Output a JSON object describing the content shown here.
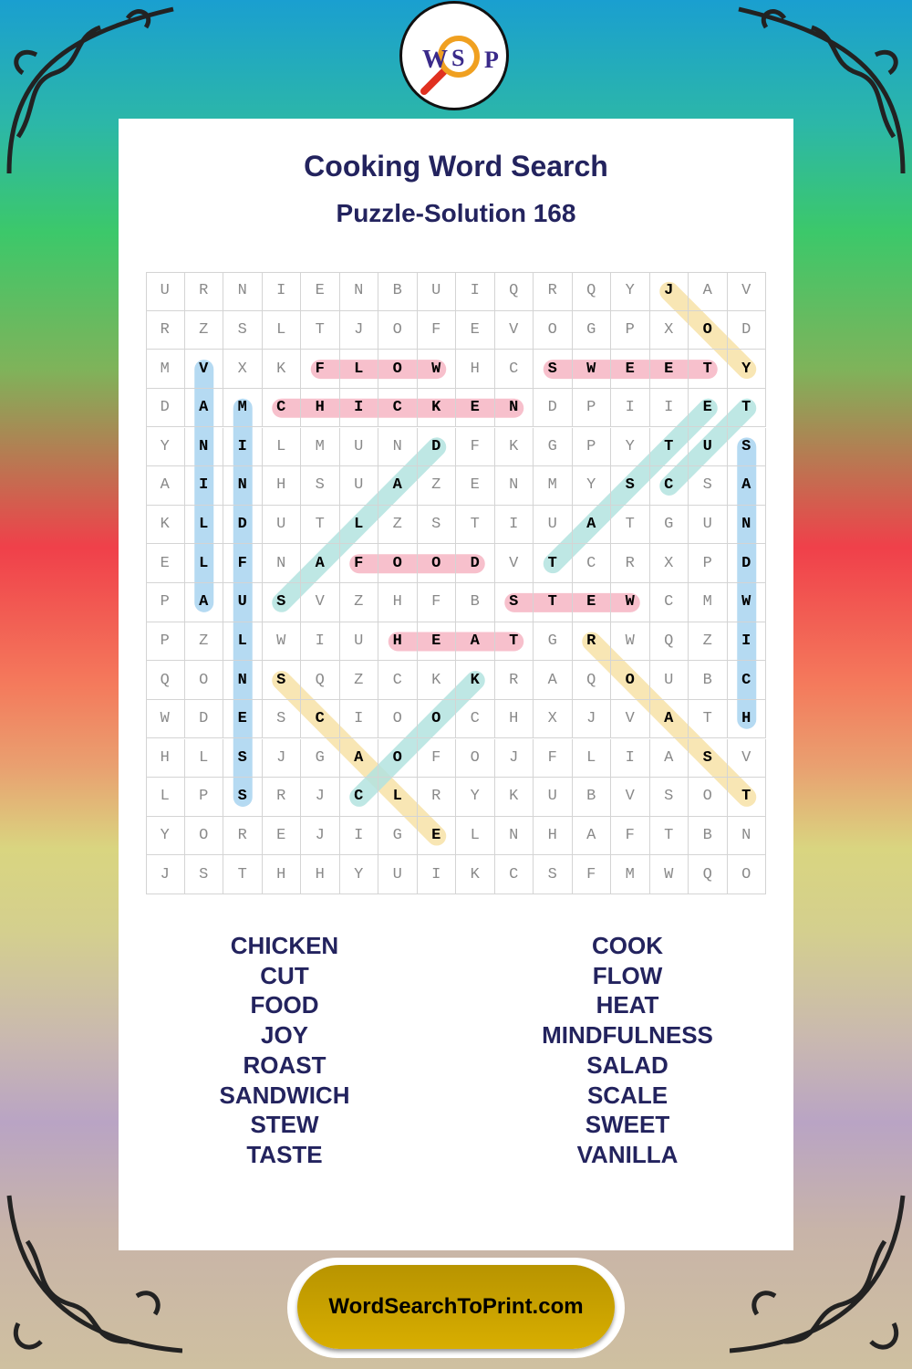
{
  "logo": {
    "letters": [
      "W",
      "S",
      "P"
    ]
  },
  "title": "Cooking Word Search",
  "subtitle": "Puzzle-Solution 168",
  "grid": [
    "URNIENBUIQRQYJAV",
    "RZSLTJOFEVOGPXOD",
    "MVXKFLOWHCSWEETY",
    "DAMCHICKENDPIIET",
    "YNILMUNDFKGPYTUS",
    "AINHSUAZENMYSCSA",
    "KLDUTLZSTIUATGUN",
    "ELFNAFOODVTCRXPD",
    "PAUSVZHFBSTEWCMW",
    "PZLWIUHEATGRWQZI",
    "QONSQZCKKRAQOUBC",
    "WDESCIOOCHXJVATH",
    "HLSJGAOFOJFLIASV",
    "LPSRJCLRYKUBVSOT",
    "YOREJIGELNHAFTBN",
    "JSTHHYUIKCSFMWQO"
  ],
  "colors": {
    "pink": "#f7c0cc",
    "blue": "#a9d4f0",
    "teal": "#b3e3e0",
    "yellow": "#f7e2a8",
    "text": "#23235e",
    "button": "#d0a500"
  },
  "solutions": [
    {
      "word": "JOY",
      "start": [
        0,
        13
      ],
      "end": [
        2,
        15
      ],
      "color": "yellow"
    },
    {
      "word": "FLOW",
      "start": [
        2,
        4
      ],
      "end": [
        2,
        7
      ],
      "color": "pink"
    },
    {
      "word": "SWEET",
      "start": [
        2,
        10
      ],
      "end": [
        2,
        14
      ],
      "color": "pink"
    },
    {
      "word": "CHICKEN",
      "start": [
        3,
        3
      ],
      "end": [
        3,
        9
      ],
      "color": "pink"
    },
    {
      "word": "VANILLA",
      "start": [
        2,
        1
      ],
      "end": [
        8,
        1
      ],
      "color": "blue"
    },
    {
      "word": "MINDFULNESS",
      "start": [
        3,
        2
      ],
      "end": [
        13,
        2
      ],
      "color": "blue"
    },
    {
      "word": "SALAD",
      "start": [
        8,
        3
      ],
      "end": [
        4,
        7
      ],
      "color": "teal"
    },
    {
      "word": "TASTE",
      "start": [
        7,
        10
      ],
      "end": [
        3,
        14
      ],
      "color": "teal"
    },
    {
      "word": "CUT",
      "start": [
        5,
        13
      ],
      "end": [
        3,
        15
      ],
      "color": "teal"
    },
    {
      "word": "SANDWICH",
      "start": [
        4,
        15
      ],
      "end": [
        11,
        15
      ],
      "color": "blue"
    },
    {
      "word": "FOOD",
      "start": [
        7,
        5
      ],
      "end": [
        7,
        8
      ],
      "color": "pink"
    },
    {
      "word": "STEW",
      "start": [
        8,
        9
      ],
      "end": [
        8,
        12
      ],
      "color": "pink"
    },
    {
      "word": "HEAT",
      "start": [
        9,
        6
      ],
      "end": [
        9,
        9
      ],
      "color": "pink"
    },
    {
      "word": "ROAST",
      "start": [
        9,
        11
      ],
      "end": [
        13,
        15
      ],
      "color": "yellow"
    },
    {
      "word": "SCALE",
      "start": [
        10,
        3
      ],
      "end": [
        14,
        7
      ],
      "color": "yellow"
    },
    {
      "word": "COOK",
      "start": [
        13,
        5
      ],
      "end": [
        10,
        8
      ],
      "color": "teal"
    }
  ],
  "words_left": [
    "CHICKEN",
    "CUT",
    "FOOD",
    "JOY",
    "ROAST",
    "SANDWICH",
    "STEW",
    "TASTE"
  ],
  "words_right": [
    "COOK",
    "FLOW",
    "HEAT",
    "MINDFULNESS",
    "SALAD",
    "SCALE",
    "SWEET",
    "VANILLA"
  ],
  "site": "WordSearchToPrint.com"
}
